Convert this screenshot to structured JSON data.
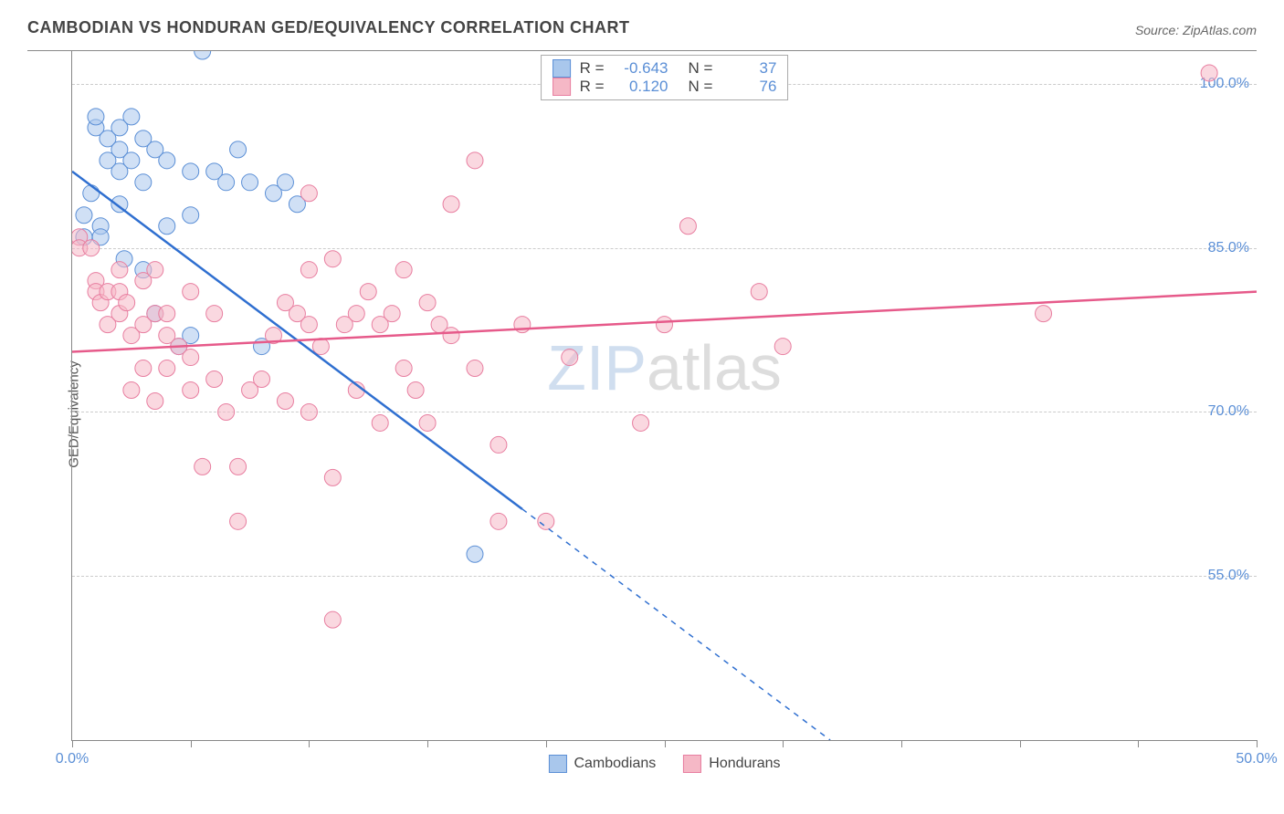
{
  "title": "CAMBODIAN VS HONDURAN GED/EQUIVALENCY CORRELATION CHART",
  "source_prefix": "Source: ",
  "source": "ZipAtlas.com",
  "ylabel": "GED/Equivalency",
  "watermark_left": "ZIP",
  "watermark_right": "atlas",
  "chart": {
    "type": "scatter",
    "xlim": [
      0,
      50
    ],
    "ylim": [
      40,
      103
    ],
    "x_ticks": [
      0,
      5,
      10,
      15,
      20,
      25,
      30,
      35,
      40,
      45,
      50
    ],
    "x_tick_labels": {
      "0": "0.0%",
      "50": "50.0%"
    },
    "y_ticks": [
      55,
      70,
      85,
      100
    ],
    "y_tick_labels": [
      "55.0%",
      "70.0%",
      "85.0%",
      "100.0%"
    ],
    "background_color": "#ffffff",
    "grid_color": "#cccccc",
    "axis_color": "#888888",
    "tick_label_color": "#5b8fd6",
    "marker_radius": 9,
    "marker_opacity": 0.55,
    "line_width": 2.5,
    "series": [
      {
        "name": "Cambodians",
        "color_fill": "#a9c7ec",
        "color_stroke": "#5b8fd6",
        "line_color": "#2f6fd0",
        "R": "-0.643",
        "N": "37",
        "trend": {
          "x1": 0,
          "y1": 92,
          "x2": 32,
          "y2": 40
        },
        "trend_solid_until_x": 19,
        "points": [
          [
            0.5,
            88
          ],
          [
            0.5,
            86
          ],
          [
            0.8,
            90
          ],
          [
            1,
            96
          ],
          [
            1,
            97
          ],
          [
            1.2,
            87
          ],
          [
            1.2,
            86
          ],
          [
            1.5,
            95
          ],
          [
            1.5,
            93
          ],
          [
            2,
            96
          ],
          [
            2,
            94
          ],
          [
            2,
            92
          ],
          [
            2,
            89
          ],
          [
            2.2,
            84
          ],
          [
            2.5,
            97
          ],
          [
            2.5,
            93
          ],
          [
            3,
            95
          ],
          [
            3,
            91
          ],
          [
            3,
            83
          ],
          [
            3.5,
            94
          ],
          [
            3.5,
            79
          ],
          [
            4,
            93
          ],
          [
            4,
            87
          ],
          [
            4.5,
            76
          ],
          [
            5,
            92
          ],
          [
            5,
            88
          ],
          [
            5.5,
            103
          ],
          [
            6,
            92
          ],
          [
            6.5,
            91
          ],
          [
            7,
            94
          ],
          [
            7.5,
            91
          ],
          [
            8,
            76
          ],
          [
            8.5,
            90
          ],
          [
            9,
            91
          ],
          [
            9.5,
            89
          ],
          [
            17,
            57
          ],
          [
            5,
            77
          ]
        ]
      },
      {
        "name": "Hondurans",
        "color_fill": "#f5b8c6",
        "color_stroke": "#e87ea0",
        "line_color": "#e65a8a",
        "R": "0.120",
        "N": "76",
        "trend": {
          "x1": 0,
          "y1": 75.5,
          "x2": 50,
          "y2": 81
        },
        "trend_solid_until_x": 50,
        "points": [
          [
            0.3,
            86
          ],
          [
            0.3,
            85
          ],
          [
            0.8,
            85
          ],
          [
            1,
            82
          ],
          [
            1,
            81
          ],
          [
            1.2,
            80
          ],
          [
            1.5,
            81
          ],
          [
            1.5,
            78
          ],
          [
            2,
            83
          ],
          [
            2,
            81
          ],
          [
            2,
            79
          ],
          [
            2.3,
            80
          ],
          [
            2.5,
            77
          ],
          [
            2.5,
            72
          ],
          [
            3,
            82
          ],
          [
            3,
            78
          ],
          [
            3,
            74
          ],
          [
            3.5,
            83
          ],
          [
            3.5,
            79
          ],
          [
            3.5,
            71
          ],
          [
            4,
            77
          ],
          [
            4,
            74
          ],
          [
            4,
            79
          ],
          [
            4.5,
            76
          ],
          [
            5,
            81
          ],
          [
            5,
            75
          ],
          [
            5,
            72
          ],
          [
            5.5,
            65
          ],
          [
            6,
            73
          ],
          [
            6,
            79
          ],
          [
            6.5,
            70
          ],
          [
            7,
            65
          ],
          [
            7,
            60
          ],
          [
            7.5,
            72
          ],
          [
            8,
            73
          ],
          [
            8.5,
            77
          ],
          [
            9,
            80
          ],
          [
            9,
            71
          ],
          [
            9.5,
            79
          ],
          [
            10,
            90
          ],
          [
            10,
            83
          ],
          [
            10,
            78
          ],
          [
            10,
            70
          ],
          [
            10.5,
            76
          ],
          [
            11,
            84
          ],
          [
            11,
            64
          ],
          [
            11,
            51
          ],
          [
            11.5,
            78
          ],
          [
            12,
            79
          ],
          [
            12,
            72
          ],
          [
            12.5,
            81
          ],
          [
            13,
            69
          ],
          [
            13,
            78
          ],
          [
            13.5,
            79
          ],
          [
            14,
            83
          ],
          [
            14,
            74
          ],
          [
            14.5,
            72
          ],
          [
            15,
            80
          ],
          [
            15,
            69
          ],
          [
            15.5,
            78
          ],
          [
            16,
            89
          ],
          [
            16,
            77
          ],
          [
            17,
            74
          ],
          [
            17,
            93
          ],
          [
            18,
            60
          ],
          [
            18,
            67
          ],
          [
            19,
            78
          ],
          [
            20,
            60
          ],
          [
            21,
            75
          ],
          [
            24,
            69
          ],
          [
            25,
            78
          ],
          [
            26,
            87
          ],
          [
            29,
            81
          ],
          [
            30,
            76
          ],
          [
            41,
            79
          ],
          [
            48,
            101
          ]
        ]
      }
    ]
  },
  "legend_top": {
    "R_label": "R =",
    "N_label": "N ="
  },
  "legend_bottom": [
    {
      "label": "Cambodians"
    },
    {
      "label": "Hondurans"
    }
  ]
}
